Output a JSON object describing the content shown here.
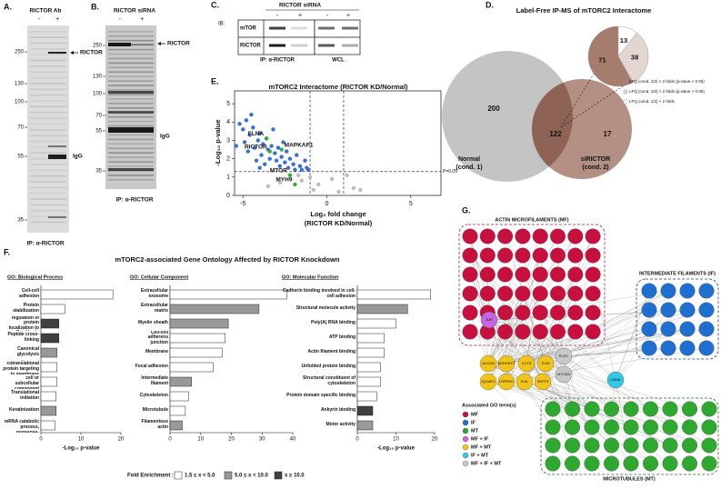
{
  "panels": {
    "a": "A.",
    "b": "B.",
    "c": "C.",
    "d": "D.",
    "e": "E.",
    "f": "F.",
    "g": "G."
  },
  "blot_a": {
    "header": "RICTOR Ab",
    "lanes": [
      "-",
      "+"
    ],
    "markers": [
      "250",
      "130",
      "100",
      "70",
      "55",
      "35"
    ],
    "bands": [
      "RICTOR",
      "IgG"
    ],
    "footer": "IP: α-RICTOR"
  },
  "blot_b": {
    "header": "RICTOR siRNA",
    "lanes": [
      "-",
      "+"
    ],
    "markers": [
      "250",
      "130",
      "100",
      "70",
      "55",
      "35"
    ],
    "bands": [
      "RICTOR",
      "IgG"
    ],
    "footer": "IP: α-RICTOR"
  },
  "blot_c": {
    "header": "RICTOR siRNA",
    "ib": "IB:",
    "lanes": [
      "-",
      "+",
      "-",
      "+"
    ],
    "rows": [
      "mTOR",
      "RICTOR"
    ],
    "footers": [
      "IP: α-RICTOR",
      "WCL"
    ]
  },
  "venn": {
    "title": "Label-Free IP-MS of mTORC2 Interactome",
    "only_1": "200",
    "overlap": "122",
    "only_2": "17",
    "pie": [
      {
        "value": 71,
        "label": "71",
        "color": "#a67c6d"
      },
      {
        "value": 38,
        "label": "38",
        "color": "#e3d6d0"
      },
      {
        "value": 13,
        "label": "13",
        "color": "#ffffff"
      }
    ],
    "sets": [
      "Normal",
      "(cond. 1)",
      "siRICTOR",
      "(cond. 2)"
    ],
    "legend": [
      "LFQ (cond. 1/2) > 2 folds (p-value < 0.05)",
      "LFQ (cond. 1/2) > 2 folds (p-value > 0.05)",
      "LFQ (cond. 1/2) < 2 folds"
    ]
  },
  "chart_data": [
    {
      "type": "scatter",
      "title": "mTORC2 Interactome (RICTOR KD/Normal)",
      "x_label": [
        "Log₂ fold change",
        "(RICTOR KD/Normal)"
      ],
      "y_label": "-Log₁₀ p-value",
      "xlim": [
        -5.5,
        6.8
      ],
      "xticks": [
        -5,
        0,
        5
      ],
      "ylim": [
        0,
        5.7
      ],
      "yticks": [
        0,
        1,
        2,
        3,
        4,
        5
      ],
      "thresholds": {
        "x": [
          -1,
          1
        ],
        "y": 1.3,
        "label": "P=0.05"
      },
      "series": [
        {
          "color": "#3b6fd8",
          "x": [
            -5.2,
            -5,
            -4.8,
            -4.6,
            -4.9,
            -4.4,
            -4.3,
            -4.1,
            -4,
            -3.9,
            -3.8,
            -3.6,
            -3.5,
            -3.4,
            -3.3,
            -3.1,
            -3,
            -2.9,
            -2.8,
            -2.7,
            -2.5,
            -2.4,
            -2.3,
            -2.2,
            -2,
            -1.9,
            -1.8,
            -1.6,
            -1.5,
            -1.3,
            -1.2,
            -4.7,
            -4.2,
            -3.7,
            -5.4,
            -4.5,
            -3.2,
            -2.6,
            -1.1,
            -4
          ],
          "values": [
            3.9,
            3.6,
            4.1,
            3.3,
            2.9,
            3.7,
            2.6,
            3,
            3.4,
            2.2,
            2.8,
            3.1,
            2.5,
            2,
            2.7,
            2.3,
            1.9,
            2.6,
            1.6,
            2.1,
            1.8,
            2.4,
            1.5,
            2,
            1.7,
            1.4,
            2.2,
            1.6,
            1.4,
            1.9,
            1.5,
            2.4,
            1.9,
            1.7,
            2.7,
            4.4,
            3.6,
            2.9,
            1.4,
            1.5
          ]
        },
        {
          "color": "#bdbdbd",
          "x": [
            -1.5,
            -1,
            -0.5,
            0.3,
            1.2,
            1.6,
            -0.8,
            -2.8,
            -3.5,
            0.7,
            2,
            -1.7
          ],
          "values": [
            0.8,
            1,
            0.6,
            0.9,
            1.1,
            0.4,
            0.3,
            0.7,
            0.5,
            0.2,
            0.3,
            1.1
          ]
        },
        {
          "color": "#2fae3a",
          "x": [
            -3.6,
            -3.4,
            -2.7,
            -2.2,
            -1.9
          ],
          "values": [
            3.1,
            2.4,
            2.5,
            1.1,
            0.6
          ],
          "labels": [
            "FLNA",
            "RICTOR",
            "MAPKAP1",
            "MTOR",
            "MYH9"
          ]
        }
      ]
    },
    {
      "type": "barh",
      "title": "GO: Biological Process",
      "x_label": "-Log₁₀ p-value",
      "xlim": [
        0,
        20
      ],
      "xticks": [
        0,
        10,
        20
      ],
      "categories": [
        "Cell-cell adhesion",
        "Protein stabilization",
        "Positive regulation of protein localization to Cajal body",
        "Peptide cross-linking",
        "Canonical glycolysis",
        "SRP-dependent cotranslational protein targeting to membrane",
        "Movement of cell or subcellular component",
        "Translational initiation",
        "Keratinization",
        "Nuclear-transcribed mRNA catabolic process, nonsense-mediated decay"
      ],
      "values": [
        18,
        6,
        4.5,
        4.5,
        4,
        4,
        4,
        3.8,
        3.8,
        3.5
      ],
      "colors": [
        "#ffffff",
        "#ffffff",
        "#404040",
        "#404040",
        "#999999",
        "#ffffff",
        "#ffffff",
        "#ffffff",
        "#999999",
        "#ffffff"
      ]
    },
    {
      "type": "barh",
      "title": "GO: Cellular Component",
      "xlim": [
        0,
        40
      ],
      "xticks": [
        0,
        10,
        20,
        30,
        40
      ],
      "categories": [
        "Extracellular exosome",
        "Extracellular matrix",
        "Myelin sheath",
        "Cell-cell adherens junction",
        "Membrane",
        "Focal adhesion",
        "Intermediate filament",
        "Cytoskeleton",
        "Microtubule",
        "Filamentous actin"
      ],
      "values": [
        38,
        29,
        19,
        18,
        17,
        14,
        7,
        6,
        5,
        4
      ],
      "colors": [
        "#ffffff",
        "#999999",
        "#999999",
        "#ffffff",
        "#ffffff",
        "#ffffff",
        "#999999",
        "#ffffff",
        "#ffffff",
        "#999999"
      ]
    },
    {
      "type": "barh",
      "title": "GO: Molecular Function",
      "x_label": "-Log₁₀ p-value",
      "xlim": [
        0,
        20
      ],
      "xticks": [
        0,
        10,
        20
      ],
      "categories": [
        "Cadherin binding involved in cell-cell adhesion",
        "Structural molecule activity",
        "Poly(A) RNA binding",
        "ATP binding",
        "Actin filament binding",
        "Unfolded protein binding",
        "Structural constituent of cytoskeleton",
        "Protein domain specific binding",
        "Ankyrin binding",
        "Motor activity"
      ],
      "values": [
        19,
        13,
        10,
        7,
        7,
        6,
        6,
        5,
        4,
        4
      ],
      "colors": [
        "#ffffff",
        "#999999",
        "#ffffff",
        "#ffffff",
        "#ffffff",
        "#ffffff",
        "#ffffff",
        "#ffffff",
        "#404040",
        "#999999"
      ]
    }
  ],
  "go_figure": {
    "title": "mTORC2-associated Gene Ontology Affected by RICTOR Knockdown",
    "legend_title": "Fold Enrichment :",
    "legend": [
      {
        "label": "1.5 ≤ x < 5.0",
        "color": "#ffffff"
      },
      {
        "label": "5.0 ≤ x < 10.0",
        "color": "#999999"
      },
      {
        "label": "x ≥ 10.0",
        "color": "#404040"
      }
    ]
  },
  "network": {
    "groups": [
      "ACTIN MICROFILAMENTS (MF)",
      "INTERMEDIATE FILAMENTS (IF)",
      "MICROTUBULES (MT)"
    ],
    "nodes": [
      "JUP",
      "PLEC",
      "MYO5A",
      "LMNA",
      "ALDOA",
      "ARHGEF2",
      "CCT8",
      "TLN1",
      "IQGAP1",
      "LRPPRC",
      "SVIL",
      "SEPT9"
    ],
    "legend_title": "Associated GO term(s)",
    "legend": [
      {
        "label": "MF",
        "color": "#c8103e"
      },
      {
        "label": "IF",
        "color": "#1f6fd1"
      },
      {
        "label": "MT",
        "color": "#2ea82e"
      },
      {
        "label": "MF + IF",
        "color": "#c766e0"
      },
      {
        "label": "MF + MT",
        "color": "#f2c318"
      },
      {
        "label": "IF + MT",
        "color": "#33c7e8"
      },
      {
        "label": "MF + IF + MT",
        "color": "#c8c8c8"
      }
    ]
  }
}
